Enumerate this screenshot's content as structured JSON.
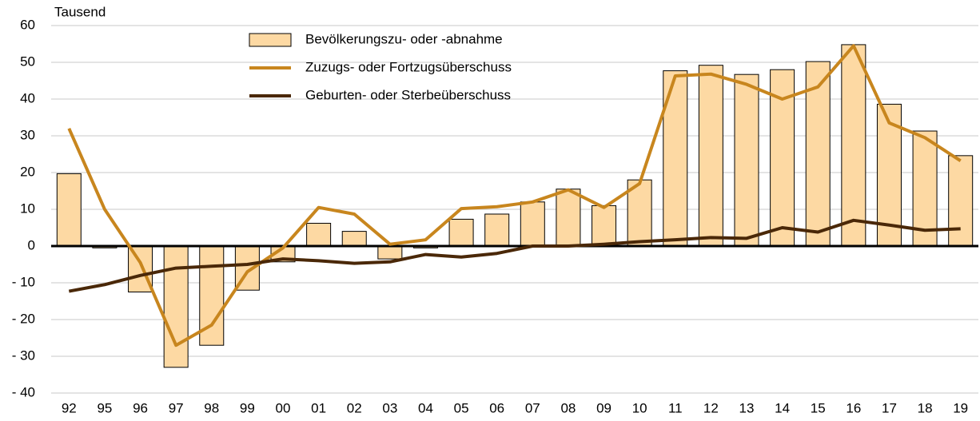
{
  "chart_data": {
    "type": "bar",
    "y_label": "Tausend",
    "categories": [
      "92",
      "95",
      "96",
      "97",
      "98",
      "99",
      "00",
      "01",
      "02",
      "03",
      "04",
      "05",
      "06",
      "07",
      "08",
      "09",
      "10",
      "11",
      "12",
      "13",
      "14",
      "15",
      "16",
      "17",
      "18",
      "19"
    ],
    "series": [
      {
        "name": "Bevölkerungszu- oder -abnahme",
        "type": "bar",
        "color": "#fdd9a3",
        "values": [
          19.7,
          -0.5,
          -12.5,
          -33,
          -27,
          -12,
          -4.3,
          6.2,
          4,
          -3.5,
          -0.5,
          7.3,
          8.7,
          12,
          15.5,
          11,
          18,
          47.7,
          49.2,
          46.7,
          48,
          50.2,
          54.8,
          38.6,
          31.3,
          24.6
        ]
      },
      {
        "name": "Zuzugs- oder Fortzugsüberschuss",
        "type": "line",
        "color": "#c8861e",
        "values": [
          32,
          10,
          -4.5,
          -27,
          -21.5,
          -7,
          -0.5,
          10.5,
          8.7,
          0.5,
          1.7,
          10.2,
          10.7,
          12,
          15.3,
          10.5,
          17,
          46.3,
          46.8,
          44,
          40,
          43.3,
          54.5,
          33.5,
          29.5,
          23.2
        ]
      },
      {
        "name": "Geburten- oder Sterbeüberschuss",
        "type": "line",
        "color": "#4a2808",
        "values": [
          -12.3,
          -10.5,
          -8,
          -6,
          -5.5,
          -5,
          -3.5,
          -4,
          -4.7,
          -4.3,
          -2.3,
          -3,
          -2,
          0,
          0,
          0.5,
          1.2,
          1.7,
          2.3,
          2.1,
          5,
          3.8,
          7,
          5.7,
          4.3,
          4.7
        ]
      }
    ],
    "ylim": [
      -40,
      60
    ],
    "yticks": [
      {
        "value": -40,
        "label": "- 40"
      },
      {
        "value": -30,
        "label": "- 30"
      },
      {
        "value": -20,
        "label": "- 20"
      },
      {
        "value": -10,
        "label": "- 10"
      },
      0,
      10,
      20,
      30,
      40,
      50,
      60
    ],
    "grid": true
  }
}
